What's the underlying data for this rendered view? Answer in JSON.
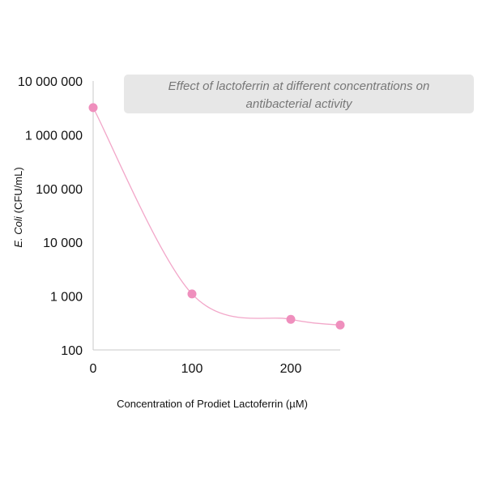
{
  "chart_data": {
    "type": "line",
    "title": "Effect of lactoferrin at different concentrations on antibacterial activity",
    "title_lines": [
      "Effect of lactoferrin at different concentrations on",
      "antibacterial activity"
    ],
    "xlabel": "Concentration of Prodiet Lactoferrin (µM)",
    "ylabel": "(CFU/mL)",
    "ylabel_italic": "E. Coli",
    "x": [
      0,
      100,
      200,
      250
    ],
    "y": [
      3200000,
      1100,
      370,
      290
    ],
    "xlim": [
      0,
      250
    ],
    "ylim": [
      100,
      10000000
    ],
    "y_scale": "log",
    "xticks": [
      0,
      100,
      200
    ],
    "xtick_labels": [
      "0",
      "100",
      "200"
    ],
    "yticks": [
      100,
      1000,
      10000,
      100000,
      1000000,
      10000000
    ],
    "ytick_labels": [
      "100",
      "1 000",
      "10 000",
      "100 000",
      "1 000 000",
      "10 000 000"
    ],
    "grid": false,
    "legend": "none",
    "series_color": "#ef8fbd",
    "line_color": "#f2a7c9",
    "title_box_color": "#e7e7e7"
  }
}
